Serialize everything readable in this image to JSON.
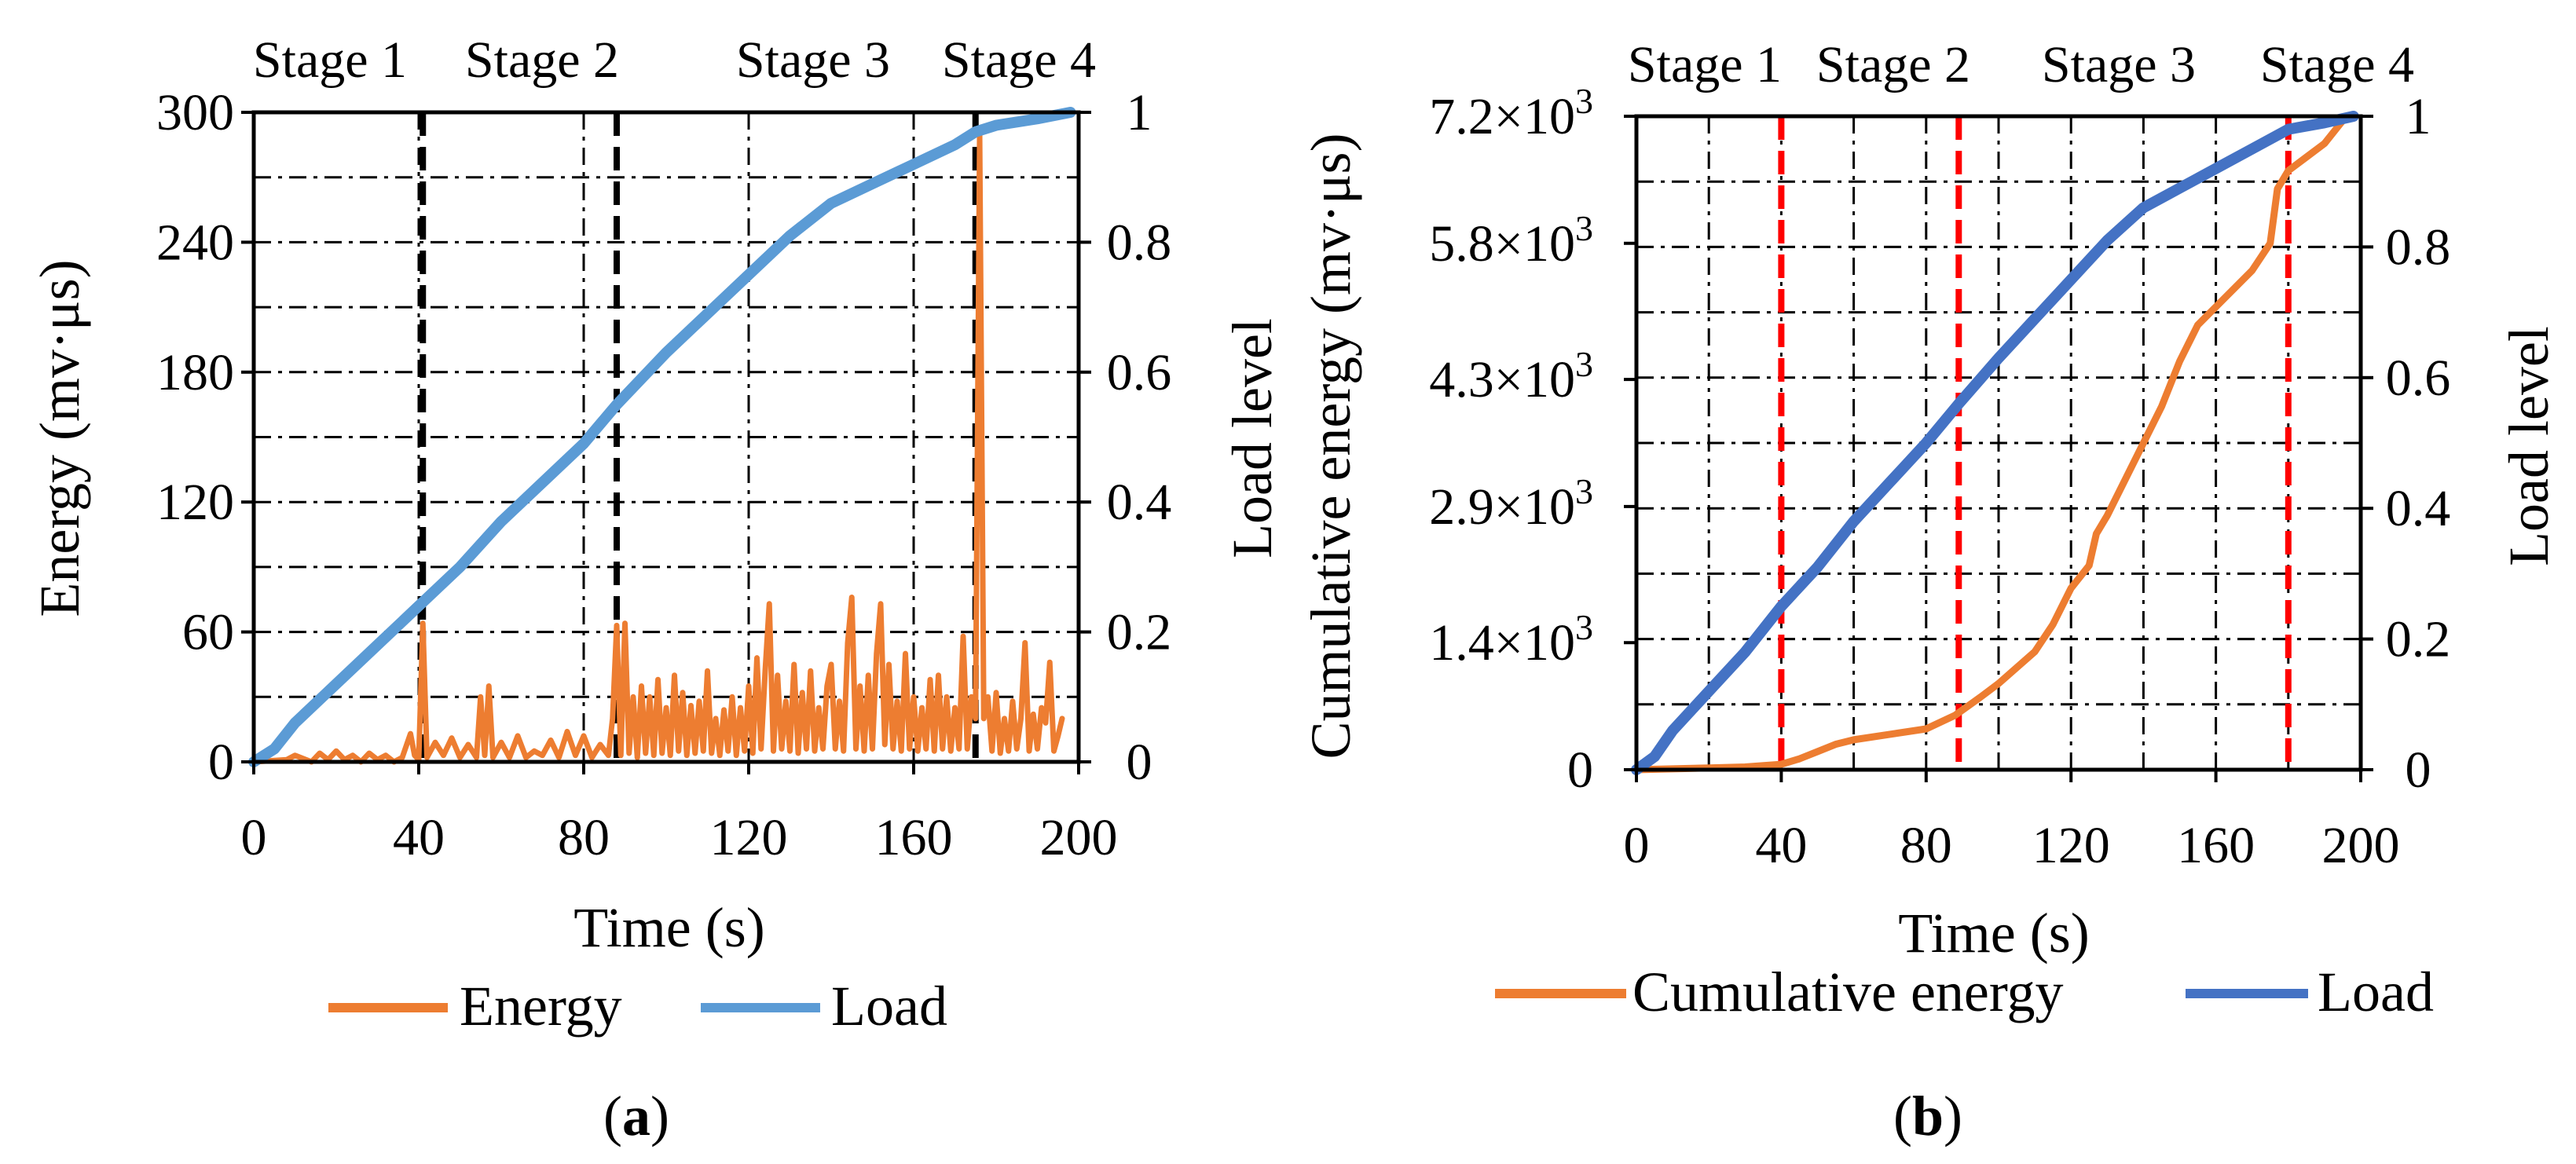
{
  "figure": {
    "panel_a_label": "(a)",
    "panel_b_label": "(b)",
    "panel_a_letter": "a",
    "panel_b_letter": "b"
  },
  "colors": {
    "energy": "#ED7D31",
    "load_a": "#5B9BD5",
    "load_b": "#4472C4",
    "stage_lines_a": "#000000",
    "stage_lines_b": "#FF0000"
  },
  "chart_data": [
    {
      "type": "line",
      "panel": "a",
      "xlabel": "Time (s)",
      "ylabel": "Energy (mv·μs)",
      "y2label": "Load level",
      "xlim": [
        0,
        200
      ],
      "ylim": [
        0,
        300
      ],
      "y2lim": [
        0,
        1
      ],
      "xticks": [
        0,
        40,
        80,
        120,
        160,
        200
      ],
      "yticks": [
        0,
        60,
        120,
        180,
        240,
        300
      ],
      "y2ticks": [
        0,
        0.2,
        0.4,
        0.6,
        0.8,
        1
      ],
      "grid": true,
      "legend_position": "bottom",
      "stage_lines": [
        41,
        88,
        175
      ],
      "stage_labels": [
        "Stage 1",
        "Stage 2",
        "Stage 3",
        "Stage 4"
      ],
      "series": [
        {
          "name": "Energy",
          "axis": "left",
          "points": [
            [
              0,
              0
            ],
            [
              8,
              1
            ],
            [
              10,
              3
            ],
            [
              14,
              0
            ],
            [
              16,
              4
            ],
            [
              18,
              1
            ],
            [
              20,
              5
            ],
            [
              22,
              1
            ],
            [
              24,
              3
            ],
            [
              26,
              0
            ],
            [
              28,
              4
            ],
            [
              30,
              1
            ],
            [
              32,
              3
            ],
            [
              34,
              0
            ],
            [
              36,
              2
            ],
            [
              38,
              13
            ],
            [
              39,
              3
            ],
            [
              40,
              1
            ],
            [
              41,
              64
            ],
            [
              42,
              2
            ],
            [
              44,
              9
            ],
            [
              46,
              3
            ],
            [
              48,
              11
            ],
            [
              50,
              2
            ],
            [
              52,
              8
            ],
            [
              54,
              2
            ],
            [
              55,
              30
            ],
            [
              56,
              3
            ],
            [
              57,
              35
            ],
            [
              58,
              2
            ],
            [
              60,
              9
            ],
            [
              62,
              2
            ],
            [
              64,
              12
            ],
            [
              66,
              2
            ],
            [
              68,
              5
            ],
            [
              70,
              3
            ],
            [
              72,
              10
            ],
            [
              74,
              2
            ],
            [
              76,
              14
            ],
            [
              78,
              3
            ],
            [
              80,
              12
            ],
            [
              82,
              2
            ],
            [
              84,
              8
            ],
            [
              86,
              3
            ],
            [
              87,
              20
            ],
            [
              88,
              63
            ],
            [
              89,
              3
            ],
            [
              90,
              64
            ],
            [
              91,
              4
            ],
            [
              92,
              30
            ],
            [
              93,
              2
            ],
            [
              94,
              35
            ],
            [
              95,
              4
            ],
            [
              96,
              30
            ],
            [
              97,
              3
            ],
            [
              98,
              38
            ],
            [
              99,
              4
            ],
            [
              100,
              25
            ],
            [
              101,
              3
            ],
            [
              102,
              40
            ],
            [
              103,
              5
            ],
            [
              104,
              32
            ],
            [
              105,
              3
            ],
            [
              106,
              26
            ],
            [
              107,
              4
            ],
            [
              108,
              28
            ],
            [
              109,
              5
            ],
            [
              110,
              42
            ],
            [
              111,
              4
            ],
            [
              112,
              20
            ],
            [
              113,
              3
            ],
            [
              114,
              24
            ],
            [
              115,
              5
            ],
            [
              116,
              30
            ],
            [
              117,
              3
            ],
            [
              118,
              25
            ],
            [
              119,
              5
            ],
            [
              120,
              35
            ],
            [
              121,
              4
            ],
            [
              122,
              48
            ],
            [
              123,
              6
            ],
            [
              124,
              42
            ],
            [
              125,
              73
            ],
            [
              126,
              5
            ],
            [
              127,
              40
            ],
            [
              128,
              6
            ],
            [
              129,
              28
            ],
            [
              130,
              5
            ],
            [
              131,
              45
            ],
            [
              132,
              4
            ],
            [
              133,
              32
            ],
            [
              134,
              6
            ],
            [
              135,
              42
            ],
            [
              136,
              5
            ],
            [
              137,
              25
            ],
            [
              138,
              6
            ],
            [
              139,
              35
            ],
            [
              140,
              45
            ],
            [
              141,
              6
            ],
            [
              142,
              28
            ],
            [
              143,
              5
            ],
            [
              144,
              55
            ],
            [
              145,
              76
            ],
            [
              146,
              6
            ],
            [
              147,
              35
            ],
            [
              148,
              5
            ],
            [
              149,
              40
            ],
            [
              150,
              6
            ],
            [
              151,
              50
            ],
            [
              152,
              73
            ],
            [
              153,
              8
            ],
            [
              154,
              45
            ],
            [
              155,
              6
            ],
            [
              156,
              28
            ],
            [
              157,
              5
            ],
            [
              158,
              50
            ],
            [
              159,
              6
            ],
            [
              160,
              30
            ],
            [
              161,
              5
            ],
            [
              162,
              25
            ],
            [
              163,
              6
            ],
            [
              164,
              38
            ],
            [
              165,
              5
            ],
            [
              166,
              40
            ],
            [
              167,
              6
            ],
            [
              168,
              30
            ],
            [
              169,
              5
            ],
            [
              170,
              25
            ],
            [
              171,
              6
            ],
            [
              172,
              58
            ],
            [
              173,
              6
            ],
            [
              174,
              30
            ],
            [
              175,
              20
            ],
            [
              176,
              290
            ],
            [
              177,
              20
            ],
            [
              178,
              30
            ],
            [
              179,
              5
            ],
            [
              180,
              32
            ],
            [
              181,
              4
            ],
            [
              182,
              20
            ],
            [
              183,
              5
            ],
            [
              184,
              28
            ],
            [
              185,
              6
            ],
            [
              186,
              20
            ],
            [
              187,
              55
            ],
            [
              188,
              5
            ],
            [
              189,
              22
            ],
            [
              190,
              6
            ],
            [
              191,
              25
            ],
            [
              192,
              18
            ],
            [
              193,
              46
            ],
            [
              194,
              5
            ],
            [
              195,
              12
            ],
            [
              196,
              20
            ]
          ]
        },
        {
          "name": "Load",
          "axis": "right",
          "points": [
            [
              0,
              0
            ],
            [
              5,
              0.02
            ],
            [
              10,
              0.06
            ],
            [
              20,
              0.12
            ],
            [
              30,
              0.18
            ],
            [
              40,
              0.24
            ],
            [
              50,
              0.3
            ],
            [
              60,
              0.37
            ],
            [
              70,
              0.43
            ],
            [
              80,
              0.49
            ],
            [
              88,
              0.55
            ],
            [
              100,
              0.63
            ],
            [
              110,
              0.69
            ],
            [
              120,
              0.75
            ],
            [
              130,
              0.81
            ],
            [
              140,
              0.86
            ],
            [
              150,
              0.89
            ],
            [
              160,
              0.92
            ],
            [
              170,
              0.95
            ],
            [
              175,
              0.97
            ],
            [
              180,
              0.98
            ],
            [
              190,
              0.99
            ],
            [
              198,
              1.0
            ]
          ]
        }
      ]
    },
    {
      "type": "line",
      "panel": "b",
      "xlabel": "Time (s)",
      "ylabel": "Cumulative energy (mv·μs)",
      "y2label": "Load level",
      "xlim": [
        0,
        200
      ],
      "ylim": [
        0,
        7200
      ],
      "y2lim": [
        0,
        1
      ],
      "xticks": [
        0,
        40,
        80,
        120,
        160,
        200
      ],
      "yticks": [
        0,
        1400,
        2900,
        4300,
        5800,
        7200
      ],
      "ytick_labels": [
        {
          "mantissa": "0",
          "exp": ""
        },
        {
          "mantissa": "1.4×10",
          "exp": "3"
        },
        {
          "mantissa": "2.9×10",
          "exp": "3"
        },
        {
          "mantissa": "4.3×10",
          "exp": "3"
        },
        {
          "mantissa": "5.8×10",
          "exp": "3"
        },
        {
          "mantissa": "7.2×10",
          "exp": "3"
        }
      ],
      "y2ticks": [
        0,
        0.2,
        0.4,
        0.6,
        0.8,
        1
      ],
      "grid": true,
      "legend_position": "bottom",
      "stage_lines": [
        40,
        89,
        180
      ],
      "stage_labels": [
        "Stage 1",
        "Stage 2",
        "Stage 3",
        "Stage 4"
      ],
      "series": [
        {
          "name": "Cumulative energy",
          "axis": "left",
          "points": [
            [
              0,
              0
            ],
            [
              10,
              10
            ],
            [
              20,
              20
            ],
            [
              30,
              30
            ],
            [
              40,
              60
            ],
            [
              45,
              120
            ],
            [
              50,
              200
            ],
            [
              55,
              280
            ],
            [
              60,
              330
            ],
            [
              70,
              390
            ],
            [
              80,
              450
            ],
            [
              88,
              600
            ],
            [
              95,
              800
            ],
            [
              100,
              950
            ],
            [
              110,
              1300
            ],
            [
              115,
              1600
            ],
            [
              120,
              2000
            ],
            [
              125,
              2250
            ],
            [
              127,
              2600
            ],
            [
              130,
              2800
            ],
            [
              135,
              3200
            ],
            [
              140,
              3600
            ],
            [
              145,
              4000
            ],
            [
              150,
              4500
            ],
            [
              155,
              4900
            ],
            [
              160,
              5100
            ],
            [
              165,
              5300
            ],
            [
              170,
              5500
            ],
            [
              175,
              5800
            ],
            [
              177,
              6400
            ],
            [
              180,
              6600
            ],
            [
              185,
              6750
            ],
            [
              190,
              6900
            ],
            [
              196,
              7200
            ]
          ]
        },
        {
          "name": "Load",
          "axis": "right",
          "points": [
            [
              0,
              0
            ],
            [
              5,
              0.02
            ],
            [
              10,
              0.06
            ],
            [
              20,
              0.12
            ],
            [
              30,
              0.18
            ],
            [
              40,
              0.25
            ],
            [
              50,
              0.31
            ],
            [
              60,
              0.38
            ],
            [
              70,
              0.44
            ],
            [
              80,
              0.5
            ],
            [
              89,
              0.56
            ],
            [
              100,
              0.63
            ],
            [
              110,
              0.69
            ],
            [
              120,
              0.75
            ],
            [
              130,
              0.81
            ],
            [
              140,
              0.86
            ],
            [
              150,
              0.89
            ],
            [
              160,
              0.92
            ],
            [
              170,
              0.95
            ],
            [
              180,
              0.98
            ],
            [
              190,
              0.99
            ],
            [
              198,
              1.0
            ]
          ]
        }
      ]
    }
  ]
}
